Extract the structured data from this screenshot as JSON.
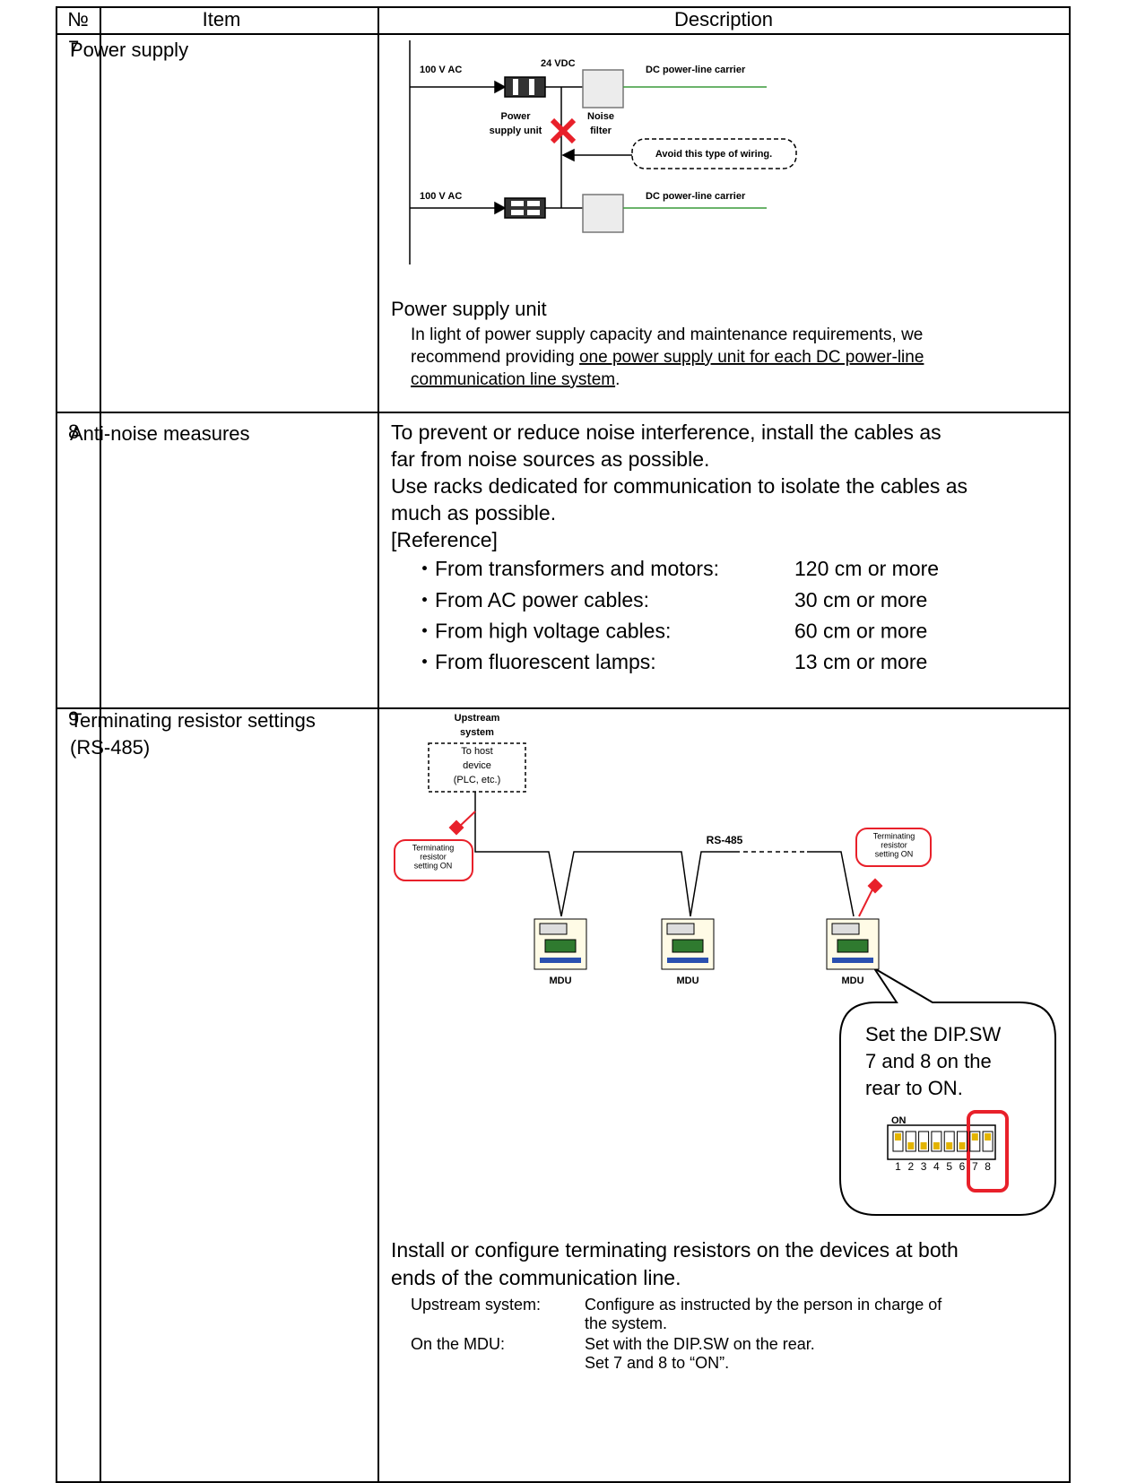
{
  "header": {
    "no": "№",
    "item": "Item",
    "description": "Description"
  },
  "rows": [
    {
      "no": "7",
      "item": [
        "Power supply"
      ],
      "diagram": {
        "input_1": "100 V AC",
        "input_2": "100 V AC",
        "output_voltage": "24 VDC",
        "carrier_1": "DC power-line carrier",
        "carrier_2": "DC power-line carrier",
        "power_supply_unit": [
          "Power",
          "supply unit"
        ],
        "noise_filter": [
          "Noise",
          "filter"
        ],
        "warning": "Avoid this type of wiring."
      },
      "heading": "Power supply unit",
      "text": [
        [
          {
            "text": "In light of power supply capacity and maintenance requirements, we",
            "underline": false
          }
        ],
        [
          {
            "text": "recommend providing ",
            "underline": false
          },
          {
            "text": "one power supply unit for each DC power-line",
            "underline": true
          }
        ],
        [
          {
            "text": "communication line system",
            "underline": true
          },
          {
            "text": ".",
            "underline": false
          }
        ]
      ]
    },
    {
      "no": "8",
      "item": [
        "Anti-noise measures"
      ],
      "text": [
        "To prevent or reduce noise interference, install the cables as",
        "far from noise sources as possible.",
        "Use racks dedicated for communication to isolate the cables as",
        "much as possible."
      ],
      "reference_heading": "[Reference]",
      "reference": [
        {
          "source": "・From transformers and motors:",
          "distance": "120 cm or more"
        },
        {
          "source": "・From AC power cables:",
          "distance": "30 cm or more"
        },
        {
          "source": "・From high voltage cables:",
          "distance": "60 cm or more"
        },
        {
          "source": "・From fluorescent lamps:",
          "distance": "13 cm or more"
        }
      ]
    },
    {
      "no": "9",
      "item": [
        "Terminating resistor settings",
        "(RS-485)"
      ],
      "diagram": {
        "upstream": [
          "Upstream",
          "system"
        ],
        "host": [
          "To host",
          "device",
          "(PLC, etc.)"
        ],
        "terminating_left": [
          "Terminating",
          "resistor",
          "setting ON"
        ],
        "terminating_right": [
          "Terminating",
          "resistor",
          "setting ON"
        ],
        "bus": "RS-485",
        "devices": [
          "MDU",
          "MDU",
          "MDU"
        ],
        "callout": [
          "Set the DIP.SW",
          "7 and 8 on the",
          "rear to ON."
        ],
        "dip_on": "ON",
        "dip_numbers": [
          "1",
          "2",
          "3",
          "4",
          "5",
          "6",
          "7",
          "8"
        ]
      },
      "text": [
        "Install or configure terminating resistors on the devices at both",
        "ends of the communication line."
      ],
      "settings": [
        {
          "target": "Upstream system:",
          "instruction": [
            "Configure as instructed by the person in charge of",
            "the system."
          ]
        },
        {
          "target": "On the MDU:",
          "instruction": [
            "Set with the DIP.SW on the rear.",
            "Set 7 and 8 to “ON”."
          ]
        }
      ]
    }
  ]
}
